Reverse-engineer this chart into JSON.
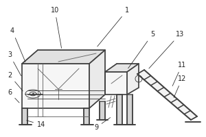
{
  "bg": "#ffffff",
  "lc": "#404040",
  "lc2": "#666666",
  "lw": 1.1,
  "tlw": 0.65,
  "fs": 7,
  "ac": "#222222"
}
